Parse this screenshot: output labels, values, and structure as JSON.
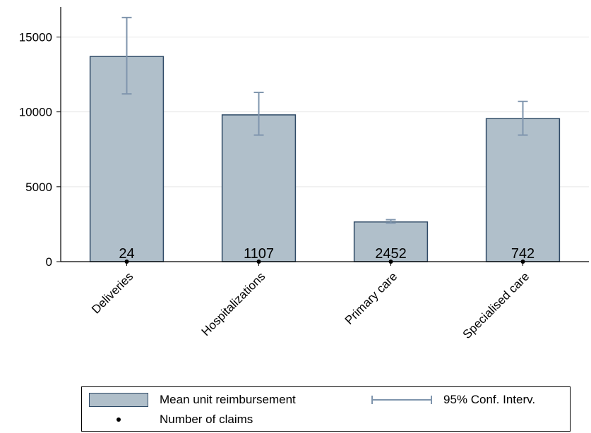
{
  "chart_data": {
    "type": "bar",
    "categories": [
      "Deliveries",
      "Hospitalizations",
      "Primary care",
      "Specialised care"
    ],
    "series": [
      {
        "name": "Mean unit reimbursement",
        "values": [
          13700,
          9800,
          2650,
          9550
        ]
      },
      {
        "name": "95% Conf. Interv.",
        "lower": [
          11200,
          8450,
          2580,
          8450
        ],
        "upper": [
          16300,
          11300,
          2800,
          10700
        ]
      },
      {
        "name": "Number of claims",
        "values": [
          24,
          1107,
          2452,
          742
        ]
      }
    ],
    "ylim": [
      0,
      17000
    ],
    "yticks": [
      0,
      5000,
      10000,
      15000
    ],
    "grid": true,
    "legend_position": "bottom",
    "colors": {
      "bar_fill": "#b0bfca",
      "bar_edge": "#2f4a66",
      "ci": "#7f95ad",
      "grid": "#e6e6e6",
      "dot": "#000000"
    }
  },
  "legend": {
    "bar_label": "Mean unit reimbursement",
    "ci_label": "95% Conf. Interv.",
    "dot_label": "Number of claims"
  }
}
